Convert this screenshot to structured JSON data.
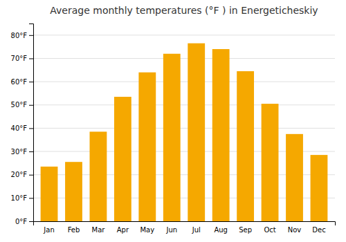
{
  "chart_data": {
    "type": "bar",
    "title": "Average monthly temperatures (°F ) in Energeticheskiy",
    "categories": [
      "Jan",
      "Feb",
      "Mar",
      "Apr",
      "May",
      "Jun",
      "Jul",
      "Aug",
      "Sep",
      "Oct",
      "Nov",
      "Dec"
    ],
    "values": [
      23.5,
      25.5,
      38.5,
      53.5,
      64.0,
      72.0,
      76.5,
      74.0,
      64.5,
      50.5,
      37.5,
      28.5
    ],
    "color": "#F5A800",
    "ylim": [
      0,
      85
    ],
    "yticks": [
      {
        "value": 0,
        "label": "0°F"
      },
      {
        "value": 10,
        "label": "10°F"
      },
      {
        "value": 20,
        "label": "20°F"
      },
      {
        "value": 30,
        "label": "30°F"
      },
      {
        "value": 40,
        "label": "40°F"
      },
      {
        "value": 50,
        "label": "50°F"
      },
      {
        "value": 60,
        "label": "60°F"
      },
      {
        "value": 70,
        "label": "70°F"
      },
      {
        "value": 80,
        "label": "80°F"
      }
    ],
    "grid": true
  }
}
